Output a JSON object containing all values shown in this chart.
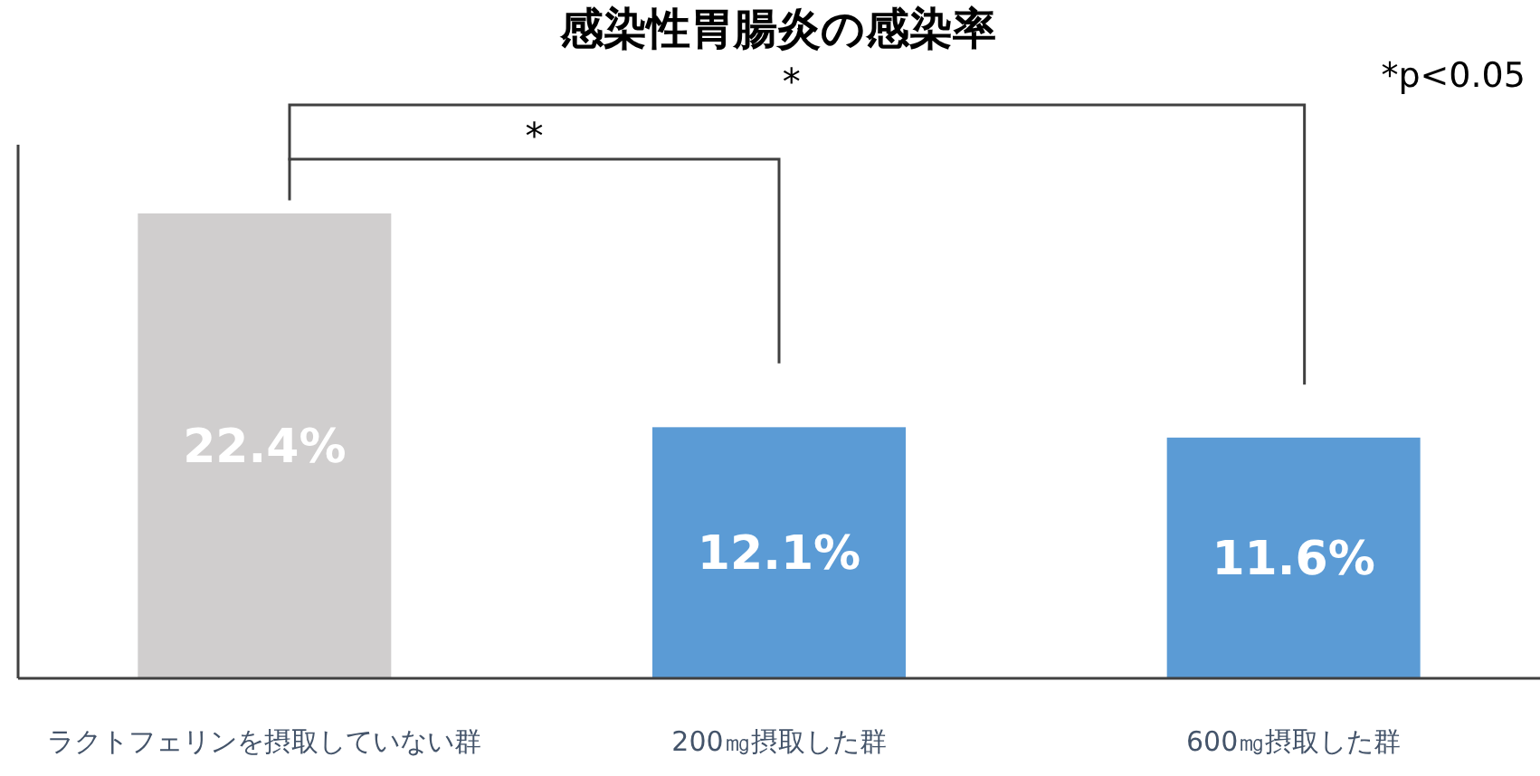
{
  "chart_data": {
    "type": "bar",
    "title": "感染性胃腸炎の感染率",
    "categories": [
      "ラクトフェリンを摂取していない群",
      "200㎎摂取した群",
      "600㎎摂取した群"
    ],
    "values": [
      22.4,
      12.1,
      11.6
    ],
    "colors": [
      "#d0cece",
      "#5b9bd5",
      "#5b9bd5"
    ],
    "value_labels": [
      "22.4%",
      "12.1%",
      "11.6%"
    ],
    "annotations": [
      "*",
      "*",
      "*p<0.05"
    ]
  }
}
